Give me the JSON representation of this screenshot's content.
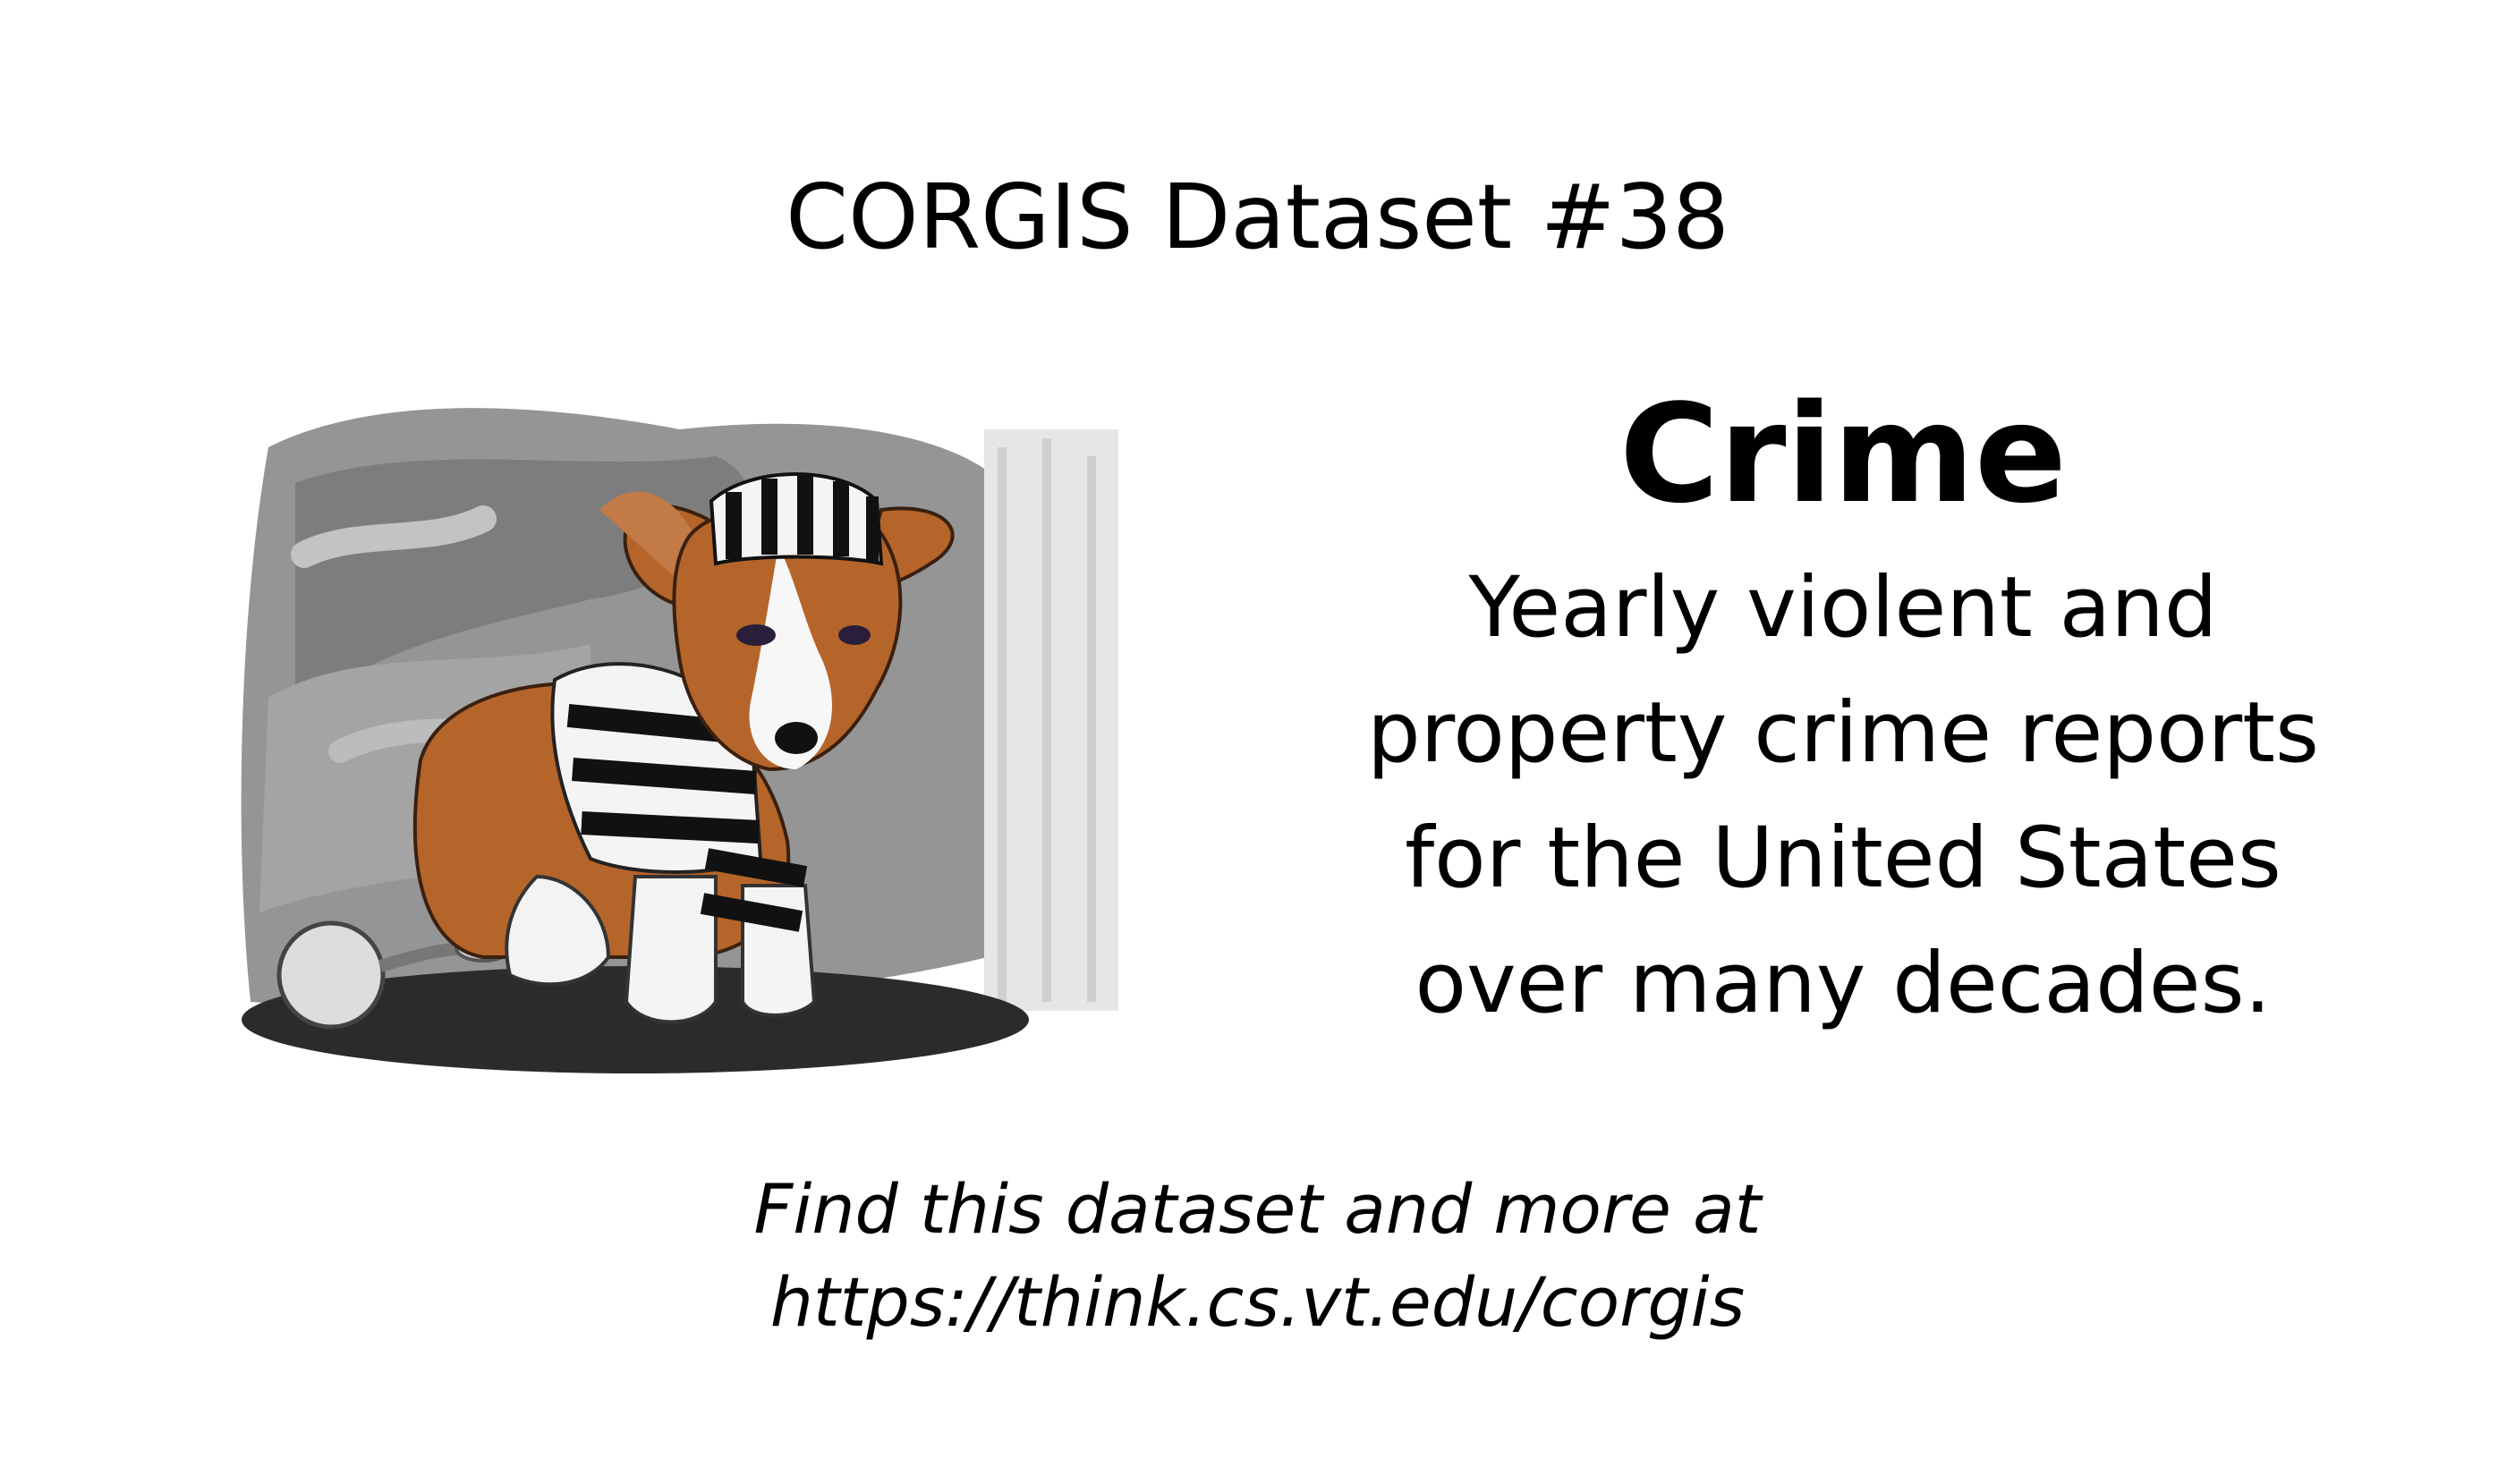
{
  "header": {
    "title": "CORGIS Dataset #38"
  },
  "dataset": {
    "name": "Crime",
    "description_lines": [
      "Yearly violent and",
      "property crime reports",
      "for the United States",
      "over many decades."
    ]
  },
  "footer": {
    "line1": "Find this dataset and more at",
    "line2": "https://think.cs.vt.edu/corgis"
  },
  "illustration": {
    "icon": "corgi-prisoner-icon",
    "colors": {
      "fur": "#b5652a",
      "background_smudge": "#7a7a7a",
      "stripe_dark": "#111111",
      "stripe_light": "#f4f4f4"
    }
  }
}
